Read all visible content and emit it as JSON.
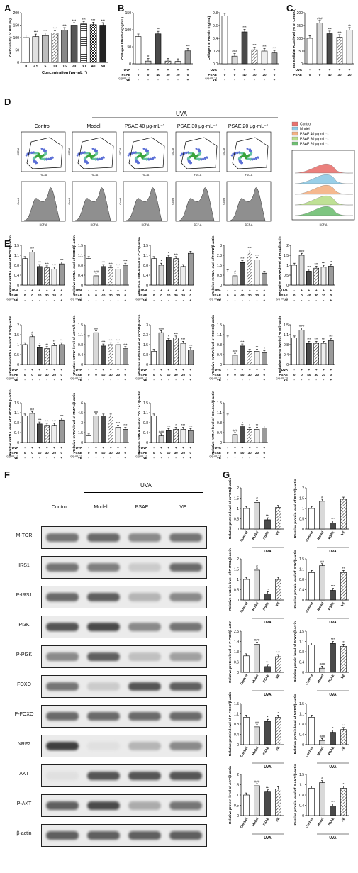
{
  "panels": {
    "A": "A",
    "B": "B",
    "C": "C",
    "D": "D",
    "E": "E",
    "F": "F",
    "G": "G"
  },
  "uva_label": "UVA",
  "panelA": {
    "ylabel": "Cell Viability of HFF (%)",
    "xlabel": "Concentration (μg·mL⁻¹)",
    "categories": [
      "0",
      "2.5",
      "5",
      "10",
      "15",
      "20",
      "30",
      "40",
      "50"
    ],
    "values": [
      100,
      104,
      108,
      118,
      130,
      150,
      155,
      152,
      150
    ],
    "sig": [
      "",
      "***",
      "***",
      "***",
      "***",
      "***",
      "***",
      "***",
      "***"
    ],
    "ylim": [
      0,
      200
    ],
    "yticks": [
      "0",
      "50",
      "100",
      "150",
      "200"
    ]
  },
  "panelB1": {
    "ylabel": "Collagen I Protein (ng/mL)",
    "values": [
      80,
      8,
      88,
      8,
      7,
      38
    ],
    "sig": [
      "",
      "#",
      "**",
      "",
      "",
      "***"
    ],
    "ylim": [
      0,
      150
    ],
    "yticks": [
      "0",
      "50",
      "100",
      "150"
    ]
  },
  "panelB2": {
    "ylabel": "Collagen III Protein (ng/mL)",
    "values": [
      0.75,
      0.12,
      0.5,
      0.22,
      0.2,
      0.17
    ],
    "sig": [
      "",
      "###",
      "***",
      "***",
      "***",
      "***"
    ],
    "ylim": [
      0,
      0.8
    ],
    "yticks": [
      "0.0",
      "0.2",
      "0.4",
      "0.6",
      "0.8"
    ]
  },
  "panelC": {
    "ylabel": "Intracellular ROS level (% of Control)",
    "values": [
      100,
      160,
      118,
      104,
      132
    ],
    "sig": [
      "",
      "###",
      "***",
      "***",
      "**"
    ],
    "ylim": [
      0,
      200
    ],
    "yticks": [
      "0",
      "50",
      "100",
      "150",
      "200"
    ]
  },
  "treat_rows": {
    "uva": {
      "label": "UVA",
      "vals": [
        "-",
        "+",
        "+",
        "+",
        "+",
        "+"
      ]
    },
    "psae": {
      "label": "PSAE",
      "unit": "(μg·mL⁻¹)",
      "vals": [
        "0",
        "0",
        "40",
        "30",
        "20",
        "0"
      ]
    },
    "ve": {
      "label": "VE",
      "vals": [
        "-",
        "-",
        "-",
        "-",
        "-",
        "+"
      ]
    }
  },
  "panelD": {
    "titles": [
      "Control",
      "Model",
      "PSAE 40 μg·mL⁻¹",
      "PSAE 30 μg·mL⁻¹",
      "PSAE 20 μg·mL⁻¹"
    ],
    "legend": [
      {
        "label": "Control",
        "color": "#e9736f"
      },
      {
        "label": "Model",
        "color": "#8ecae6"
      },
      {
        "label": "PSAE 40 μg·mL⁻¹",
        "color": "#f4b183"
      },
      {
        "label": "PSAE 30 μg·mL⁻¹",
        "color": "#b9de8a"
      },
      {
        "label": "PSAE 20 μg·mL⁻¹",
        "color": "#6fbf73"
      }
    ],
    "xaxis": "FSC-A",
    "yaxis": "SSC-A",
    "hist_x": "DCF-A",
    "hist_y": "Count"
  },
  "panelE": {
    "charts": [
      {
        "ylabel": "Relative mRNA level of ROS1/β-actin",
        "values": [
          1.0,
          1.25,
          0.7,
          0.65,
          0.6,
          0.8
        ],
        "sig": [
          "",
          "##",
          "***",
          "***",
          "***",
          "***"
        ],
        "ymax": 1.5
      },
      {
        "ylabel": "Relative mRNA level of SOD1/β-actin",
        "values": [
          1.0,
          0.35,
          0.7,
          0.65,
          0.6,
          0.75
        ],
        "sig": [
          "",
          "###",
          "***",
          "***",
          "***",
          "***"
        ],
        "ymax": 1.5
      },
      {
        "ylabel": "Relative mRNA level of CAT/β-actin",
        "values": [
          1.0,
          0.75,
          1.05,
          1.0,
          0.7,
          1.2
        ],
        "sig": [
          "",
          "*",
          "*",
          "***",
          "",
          ""
        ],
        "ymax": 1.5
      },
      {
        "ylabel": "Relative mRNA level of NRF2/β-actin",
        "values": [
          1.0,
          0.7,
          1.7,
          2.5,
          1.9,
          0.9
        ],
        "sig": [
          "",
          "#",
          "***",
          "***",
          "***",
          ""
        ],
        "ymax": 3
      },
      {
        "ylabel": "Relative mRNA level of IRS1/β-actin",
        "values": [
          1.0,
          1.5,
          0.7,
          0.85,
          0.9,
          0.95
        ],
        "sig": [
          "",
          "###",
          "***",
          "***",
          "***",
          "**"
        ],
        "ymax": 2
      },
      {
        "ylabel": "Relative mRNA level of PI3K/β-actin",
        "values": [
          1.0,
          1.4,
          0.85,
          0.8,
          0.95,
          1.0
        ],
        "sig": [
          "",
          "#",
          "*",
          "**",
          "**",
          "**"
        ],
        "ymax": 2
      },
      {
        "ylabel": "Relative mRNA level of AKT1/β-actin",
        "values": [
          1.0,
          1.2,
          0.7,
          0.75,
          0.75,
          0.6
        ],
        "sig": [
          "",
          "##",
          "***",
          "***",
          "***",
          "***"
        ],
        "ymax": 1.5
      },
      {
        "ylabel": "Relative mRNA level of mTOR/β-actin",
        "values": [
          1.0,
          2.4,
          1.8,
          2.0,
          1.6,
          1.1
        ],
        "sig": [
          "",
          "###",
          "*",
          "***",
          "***",
          "***"
        ],
        "ymax": 3
      },
      {
        "ylabel": "Relative mRNA level of FOXO/β-actin",
        "values": [
          1.0,
          0.35,
          0.7,
          0.5,
          0.5,
          0.45
        ],
        "sig": [
          "",
          "###",
          "***",
          "",
          "**",
          "*"
        ],
        "ymax": 1.5
      },
      {
        "ylabel": "Relative mRNA level of ATM/β-actin",
        "values": [
          1.0,
          1.3,
          0.8,
          0.8,
          0.8,
          0.9
        ],
        "sig": [
          "",
          "###",
          "***",
          "***",
          "***",
          "***"
        ],
        "ymax": 1.5
      },
      {
        "ylabel": "Relative mRNA level of GADD45A/β-actin",
        "values": [
          1.0,
          1.1,
          0.7,
          0.65,
          0.65,
          0.85
        ],
        "sig": [
          "",
          "##",
          "***",
          "***",
          "***",
          "***"
        ],
        "ymax": 1.5
      },
      {
        "ylabel": "Relative mRNA level of MMP1/β-actin",
        "values": [
          1.0,
          4.0,
          4.0,
          4.0,
          2.3,
          2.0
        ],
        "sig": [
          "",
          "##",
          "",
          "",
          "***",
          "***"
        ],
        "ymax": 6
      },
      {
        "ylabel": "Relative mRNA level of COL1A1/β-actin",
        "values": [
          1.0,
          0.25,
          0.45,
          0.5,
          0.5,
          0.45
        ],
        "sig": [
          "",
          "###",
          "***",
          "*",
          "***",
          "***"
        ],
        "ymax": 1.5
      },
      {
        "ylabel": "Relative mRNA level of COL3A1/β-actin",
        "values": [
          1.0,
          0.3,
          0.6,
          0.5,
          0.5,
          0.55
        ],
        "sig": [
          "",
          "###",
          "*",
          "*",
          "**",
          ""
        ],
        "ymax": 1.5
      }
    ]
  },
  "panelF": {
    "columns": [
      "Control",
      "Model",
      "PSAE",
      "VE"
    ],
    "rows": [
      {
        "label": "M-TOR",
        "bands": [
          0.55,
          0.6,
          0.45,
          0.55
        ]
      },
      {
        "label": "IRS1",
        "bands": [
          0.55,
          0.5,
          0.15,
          0.6
        ]
      },
      {
        "label": "P-IRS1",
        "bands": [
          0.6,
          0.65,
          0.25,
          0.45
        ]
      },
      {
        "label": "PI3K",
        "bands": [
          0.7,
          0.75,
          0.45,
          0.55
        ]
      },
      {
        "label": "P-PI3K",
        "bands": [
          0.45,
          0.65,
          0.2,
          0.35
        ]
      },
      {
        "label": "FOXO",
        "bands": [
          0.55,
          0.15,
          0.7,
          0.65
        ]
      },
      {
        "label": "P-FOXO",
        "bands": [
          0.6,
          0.6,
          0.6,
          0.6
        ]
      },
      {
        "label": "NRF2",
        "bands": [
          0.8,
          0.05,
          0.25,
          0.45
        ]
      },
      {
        "label": "AKT",
        "bands": [
          0.05,
          0.7,
          0.7,
          0.7
        ]
      },
      {
        "label": "P-AKT",
        "bands": [
          0.65,
          0.75,
          0.3,
          0.55
        ]
      },
      {
        "label": "β-actin",
        "bands": [
          0.65,
          0.65,
          0.65,
          0.65
        ]
      }
    ]
  },
  "panelG": {
    "categories": [
      "Control",
      "Model",
      "PSAE",
      "VE"
    ],
    "charts": [
      {
        "ylabel": "Relative protein level of mTOR/β-actin",
        "values": [
          1.0,
          1.3,
          0.45,
          1.05
        ],
        "sig": [
          "",
          "#",
          "***",
          ""
        ],
        "ymax": 2
      },
      {
        "ylabel": "Relative protein level of IRS1/β-actin",
        "values": [
          1.0,
          1.35,
          0.3,
          1.45
        ],
        "sig": [
          "",
          "#",
          "***",
          ""
        ],
        "ymax": 2
      },
      {
        "ylabel": "Relative protein level of P-IRS1/β-actin",
        "values": [
          1.0,
          1.45,
          0.3,
          1.0
        ],
        "sig": [
          "",
          "#",
          "**",
          ""
        ],
        "ymax": 2
      },
      {
        "ylabel": "Relative protein level of PI3K/β-actin",
        "values": [
          1.0,
          1.25,
          0.35,
          1.0
        ],
        "sig": [
          "",
          "##",
          "***",
          "**"
        ],
        "ymax": 1.5
      },
      {
        "ylabel": "Relative protein level of P-PI3K/β-actin",
        "values": [
          1.0,
          1.7,
          0.35,
          0.95
        ],
        "sig": [
          "",
          "###",
          "***",
          "***"
        ],
        "ymax": 2.5
      },
      {
        "ylabel": "Relative protein level of FOXO/β-actin",
        "values": [
          1.0,
          0.15,
          1.05,
          0.95
        ],
        "sig": [
          "",
          "###",
          "***",
          "***"
        ],
        "ymax": 1.5
      },
      {
        "ylabel": "Relative protein level of P-FOXO/β-actin",
        "values": [
          1.0,
          0.65,
          0.85,
          1.0
        ],
        "sig": [
          "",
          "##",
          "*",
          "*"
        ],
        "ymax": 1.5
      },
      {
        "ylabel": "Relative protein level of NRF2/β-actin",
        "values": [
          1.0,
          0.15,
          0.45,
          0.55
        ],
        "sig": [
          "",
          "###",
          "*",
          "**"
        ],
        "ymax": 1.5
      },
      {
        "ylabel": "Relative protein level of AKT/β-actin",
        "values": [
          1.0,
          1.45,
          1.15,
          1.3
        ],
        "sig": [
          "",
          "###",
          "***",
          ""
        ],
        "ymax": 2
      },
      {
        "ylabel": "Relative protein level of P-AKT/β-actin",
        "values": [
          1.0,
          1.2,
          0.35,
          1.0
        ],
        "sig": [
          "",
          "#",
          "***",
          "*"
        ],
        "ymax": 1.5
      }
    ]
  }
}
